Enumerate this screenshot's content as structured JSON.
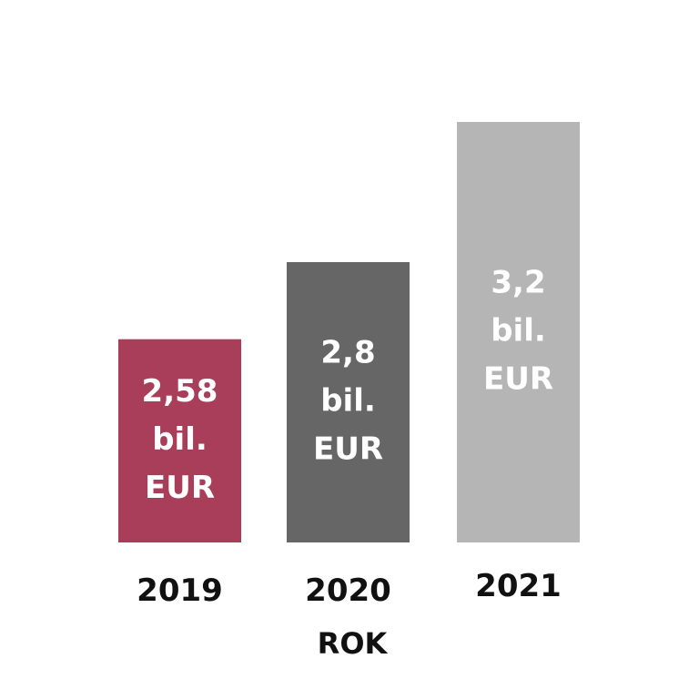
{
  "chart_data": {
    "type": "bar",
    "categories": [
      "2019",
      "2020",
      "2021"
    ],
    "values": [
      2.58,
      2.8,
      3.2
    ],
    "data_labels": [
      [
        "2,58",
        "bil.",
        "EUR"
      ],
      [
        "2,8",
        "bil.",
        "EUR"
      ],
      [
        "3,2",
        "bil.",
        "EUR"
      ]
    ],
    "bar_colors": [
      "#a83e5a",
      "#666666",
      "#b5b5b5"
    ],
    "title": "",
    "xlabel": "ROK",
    "ylabel": "",
    "ylim": [
      2.0,
      3.3
    ],
    "grid": false,
    "legend": "none"
  }
}
